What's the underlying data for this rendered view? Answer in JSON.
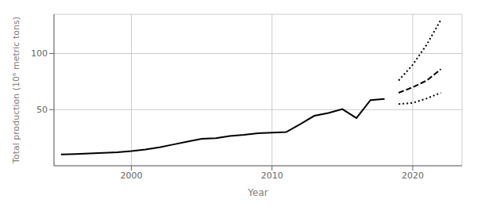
{
  "chart_data": {
    "type": "line",
    "title": "",
    "xlabel": "Year",
    "ylabel": "Total production  (10⁶ metric tons)",
    "x": [
      1995,
      1996,
      1997,
      1998,
      1999,
      2000,
      2001,
      2002,
      2003,
      2004,
      2005,
      2006,
      2007,
      2008,
      2009,
      2010,
      2011,
      2012,
      2013,
      2014,
      2015,
      2016,
      2017,
      2018,
      2019,
      2020,
      2021,
      2022
    ],
    "series": [
      {
        "color": "#000000",
        "line_style": "solid",
        "values": [
          10.0,
          10.5,
          11.0,
          11.5,
          12.0,
          13.0,
          14.5,
          16.5,
          19.0,
          21.5,
          24.0,
          24.5,
          26.5,
          27.5,
          29.0,
          29.5,
          30.0,
          37.0,
          44.5,
          47.0,
          50.5,
          42.5,
          58.5,
          59.5,
          null,
          null,
          null,
          null
        ]
      },
      {
        "color": "#000000",
        "line_style": "dashed",
        "values": [
          null,
          null,
          null,
          null,
          null,
          null,
          null,
          null,
          null,
          null,
          null,
          null,
          null,
          null,
          null,
          null,
          null,
          null,
          null,
          null,
          null,
          null,
          null,
          null,
          65.0,
          70.0,
          76.0,
          86.0
        ]
      },
      {
        "color": "#000000",
        "line_style": "dotted",
        "values": [
          null,
          null,
          null,
          null,
          null,
          null,
          null,
          null,
          null,
          null,
          null,
          null,
          null,
          null,
          null,
          null,
          null,
          null,
          null,
          null,
          null,
          null,
          null,
          null,
          76.0,
          90.0,
          108.0,
          130.0
        ]
      },
      {
        "color": "#000000",
        "line_style": "dotted",
        "values": [
          null,
          null,
          null,
          null,
          null,
          null,
          null,
          null,
          null,
          null,
          null,
          null,
          null,
          null,
          null,
          null,
          null,
          null,
          null,
          null,
          null,
          null,
          null,
          null,
          55.0,
          56.0,
          60.0,
          65.0
        ]
      }
    ],
    "xlim": [
      1994.5,
      2023.5
    ],
    "ylim": [
      0,
      135
    ],
    "xticks": [
      2000,
      2010,
      2020
    ],
    "yticks": [
      50,
      100
    ],
    "grid": true
  }
}
